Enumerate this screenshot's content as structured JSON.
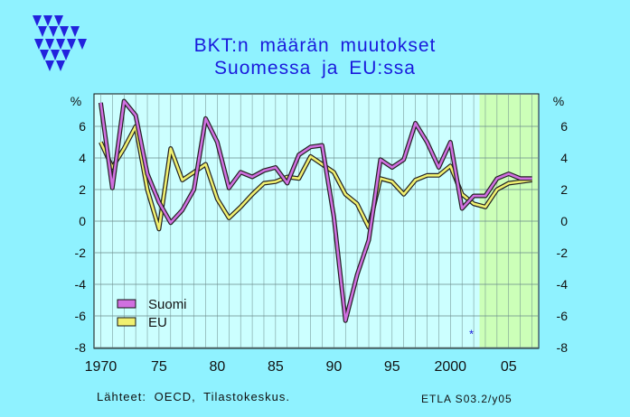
{
  "title": {
    "line1": "BKT:n määrän muutokset",
    "line2": "Suomessa ja EU:ssa"
  },
  "footer": {
    "source": "Lähteet:   OECD, Tilastokeskus.",
    "reference": "ETLA S03.2/y05"
  },
  "colors": {
    "background": "#8ff2ff",
    "plot_background": "#ccffff",
    "forecast_shade": "#ccffb8",
    "title": "#1a1adc",
    "suomi": "#d070e0",
    "eu": "#f0f070"
  },
  "logo": "etla-triangles-logo",
  "chart_data": {
    "type": "line",
    "title": "BKT:n määrän muutokset Suomessa ja EU:ssa",
    "xlabel": "",
    "ylabel": "%",
    "xlim": [
      1969.5,
      2007.5
    ],
    "ylim": [
      -8,
      8
    ],
    "yticks": [
      -8,
      -6,
      -4,
      -2,
      0,
      2,
      4,
      6
    ],
    "ytick_labels": [
      "-8",
      "-6",
      "-4",
      "-2",
      "0",
      "2",
      "4",
      "6"
    ],
    "xticks": [
      1970,
      1975,
      1980,
      1985,
      1990,
      1995,
      2000,
      2005
    ],
    "xtick_labels": [
      "1970",
      "75",
      "80",
      "85",
      "90",
      "95",
      "2000",
      "05"
    ],
    "y_unit_label": "%",
    "forecast_from": 2002.5,
    "marker": {
      "x": 2001.8,
      "y": -7.1,
      "symbol": "*"
    },
    "grid": true,
    "legend_position": "bottom-left",
    "x": [
      1970,
      1971,
      1972,
      1973,
      1974,
      1975,
      1976,
      1977,
      1978,
      1979,
      1980,
      1981,
      1982,
      1983,
      1984,
      1985,
      1986,
      1987,
      1988,
      1989,
      1990,
      1991,
      1992,
      1993,
      1994,
      1995,
      1996,
      1997,
      1998,
      1999,
      2000,
      2001,
      2002,
      2003,
      2004,
      2005,
      2006,
      2007
    ],
    "series": [
      {
        "name": "Suomi",
        "values": [
          7.5,
          2.1,
          7.6,
          6.7,
          3.0,
          1.2,
          -0.1,
          0.7,
          2.0,
          6.5,
          5.0,
          2.1,
          3.1,
          2.8,
          3.2,
          3.4,
          2.4,
          4.2,
          4.7,
          4.8,
          0.3,
          -6.3,
          -3.4,
          -1.2,
          3.9,
          3.4,
          3.9,
          6.2,
          5.0,
          3.4,
          5.0,
          0.8,
          1.6,
          1.6,
          2.7,
          3.0,
          2.7,
          2.7
        ]
      },
      {
        "name": "EU",
        "values": [
          5.0,
          3.4,
          4.6,
          6.0,
          2.0,
          -0.5,
          4.6,
          2.6,
          3.1,
          3.6,
          1.4,
          0.2,
          0.9,
          1.7,
          2.4,
          2.5,
          2.8,
          2.7,
          4.1,
          3.6,
          3.1,
          1.7,
          1.1,
          -0.4,
          2.7,
          2.5,
          1.7,
          2.6,
          2.9,
          2.9,
          3.5,
          1.7,
          1.1,
          0.9,
          2.0,
          2.4,
          2.5,
          2.6
        ]
      }
    ]
  }
}
